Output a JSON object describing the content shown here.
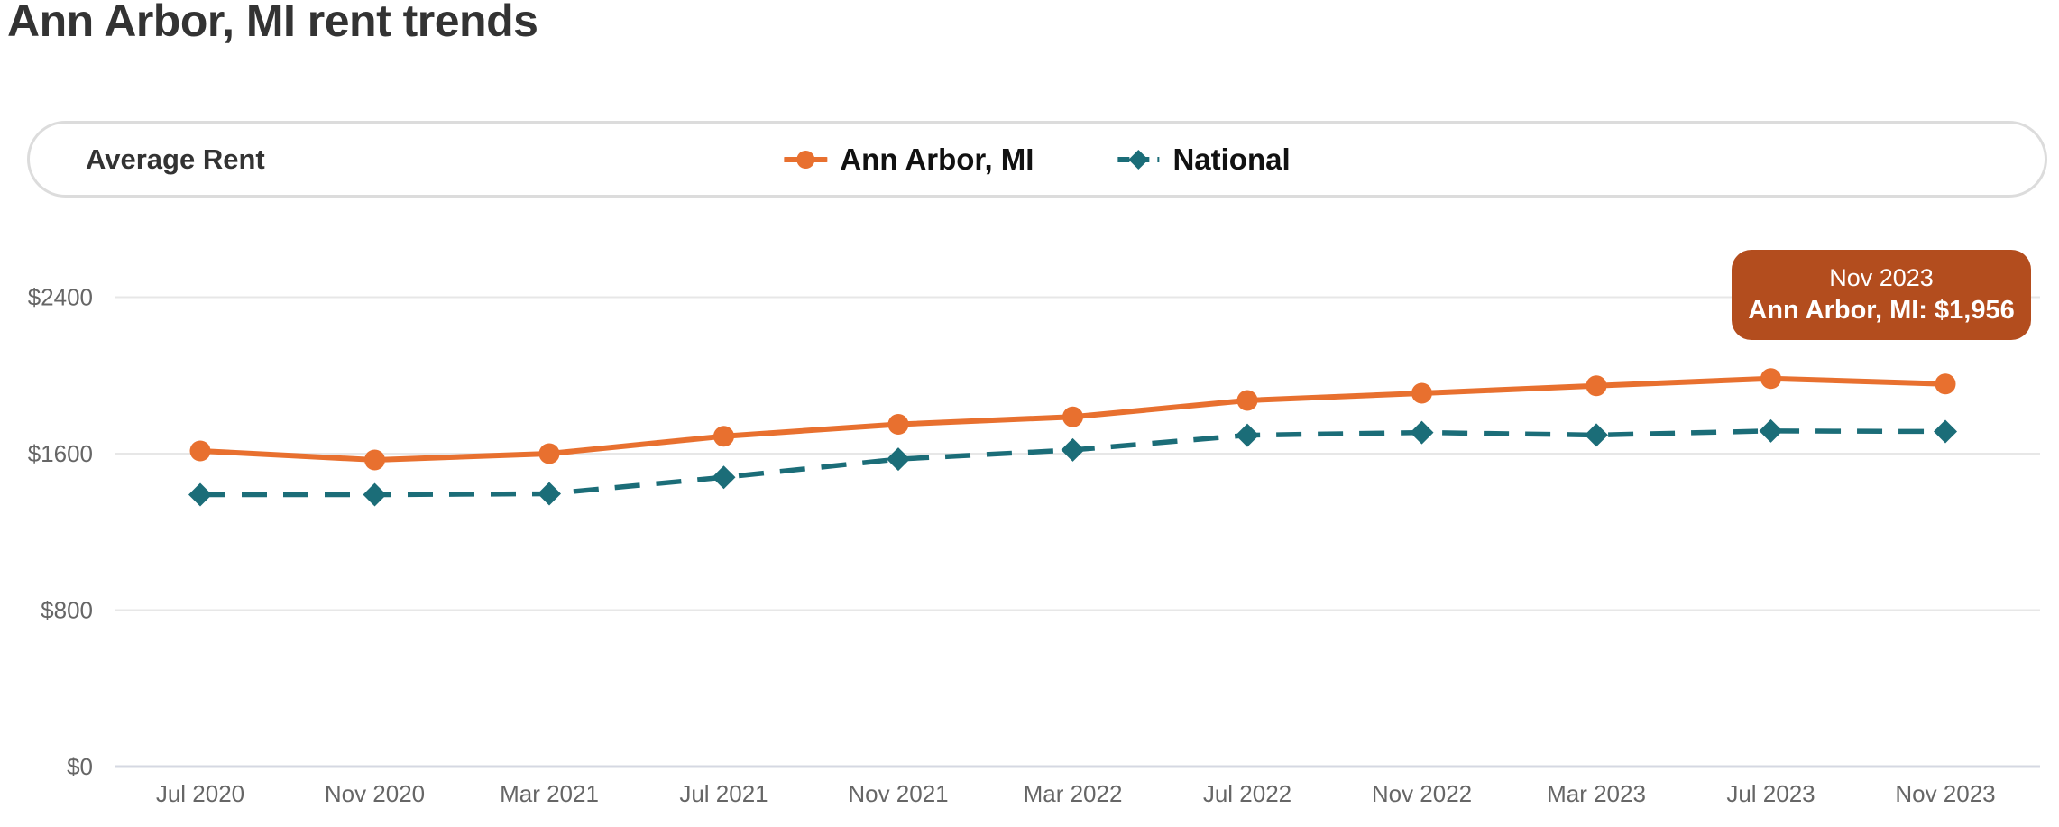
{
  "page": {
    "title": "Ann Arbor, MI rent trends"
  },
  "legend": {
    "panel_label": "Average Rent",
    "items": [
      {
        "label": "Ann Arbor, MI",
        "color": "#e8702f",
        "marker": "circle-line"
      },
      {
        "label": "National",
        "color": "#1b6d78",
        "marker": "diamond-dashed-line"
      }
    ]
  },
  "tooltip": {
    "line1": "Nov 2023",
    "line2": "Ann Arbor, MI: $1,956",
    "bg_color": "#b34d1e"
  },
  "colors": {
    "ann_arbor_series": "#e8702f",
    "national_series": "#1b6d78",
    "tooltip_bg": "#b34d1e",
    "axis_label": "#666666",
    "gridline": "#e7e7e7",
    "baseline": "#d5d8e2",
    "title_text": "#333333"
  },
  "chart_data": {
    "type": "line",
    "title": "Ann Arbor, MI rent trends",
    "xlabel": "",
    "ylabel": "Average Rent ($)",
    "grid": true,
    "legend_position": "top",
    "ylim": [
      0,
      2560
    ],
    "ytick_values": [
      0,
      800,
      1600,
      2400
    ],
    "ytick_labels": [
      "$0",
      "$800",
      "$1600",
      "$2400"
    ],
    "categories": [
      "Jul 2020",
      "Nov 2020",
      "Mar 2021",
      "Jul 2021",
      "Nov 2021",
      "Mar 2022",
      "Jul 2022",
      "Nov 2022",
      "Mar 2023",
      "Jul 2023",
      "Nov 2023"
    ],
    "series": [
      {
        "name": "Ann Arbor, MI",
        "color": "#e8702f",
        "line_style": "solid",
        "marker": "circle",
        "values": [
          1614,
          1568,
          1600,
          1689,
          1750,
          1788,
          1872,
          1909,
          1947,
          1984,
          1956
        ]
      },
      {
        "name": "National",
        "color": "#1b6d78",
        "line_style": "dashed",
        "marker": "diamond",
        "values": [
          1390,
          1390,
          1395,
          1479,
          1572,
          1619,
          1694,
          1708,
          1695,
          1716,
          1713
        ]
      }
    ],
    "annotation": {
      "label": "Nov 2023",
      "text": "Ann Arbor, MI: $1,956",
      "series": "Ann Arbor, MI",
      "x": "Nov 2023",
      "value": 1956
    }
  }
}
